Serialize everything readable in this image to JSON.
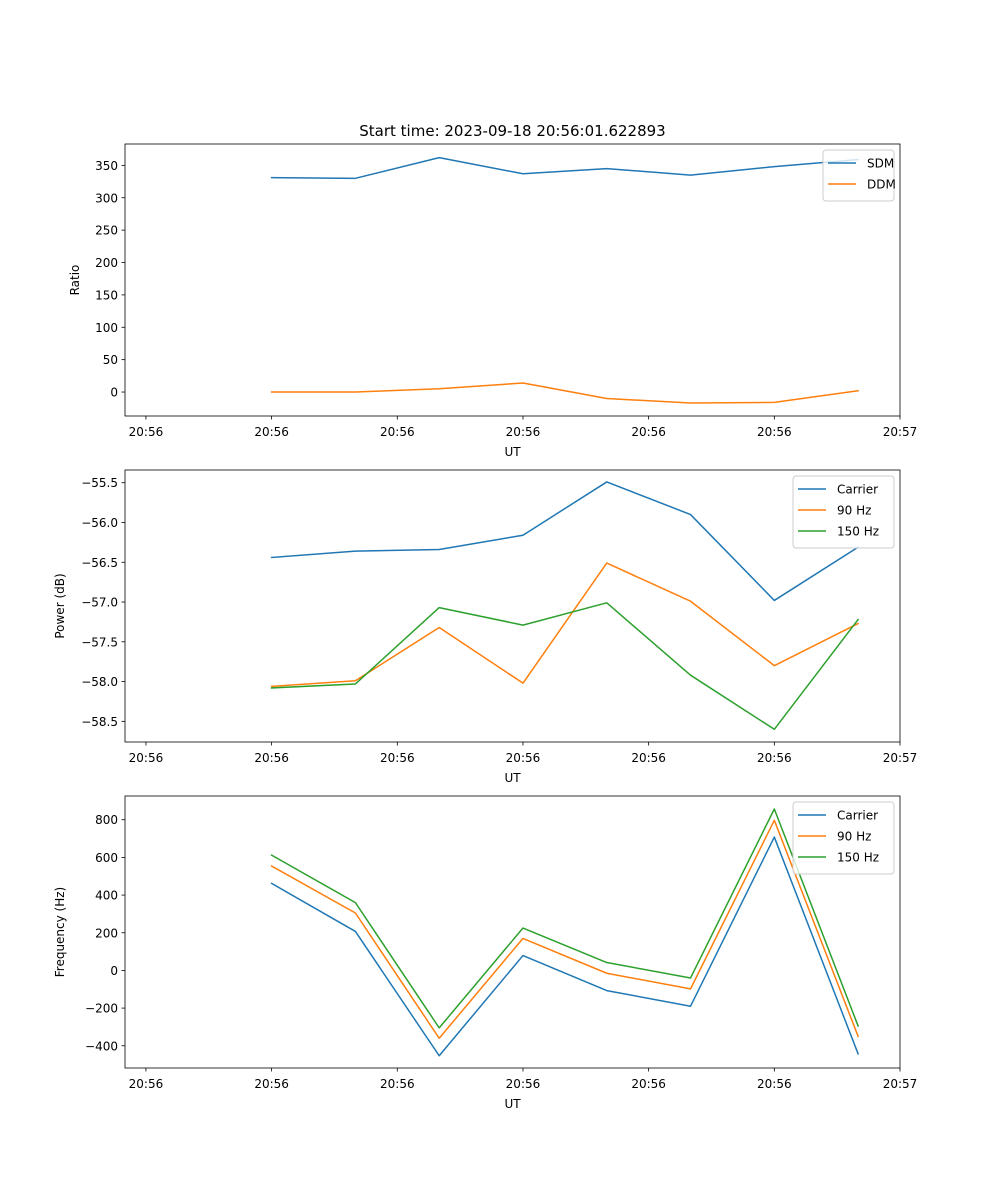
{
  "figure_title": "Start time: 2023-09-18 20:56:01.622893",
  "colors": {
    "c0": "#1f77b4",
    "c1": "#ff7f0e",
    "c2": "#2ca02c"
  },
  "chart_data": [
    {
      "type": "line",
      "title": "Start time: 2023-09-18 20:56:01.622893",
      "xlabel": "UT",
      "ylabel": "Ratio",
      "x": [
        1,
        2,
        3,
        4,
        5,
        6,
        7,
        8
      ],
      "xlim": [
        -0.75,
        8.5
      ],
      "xticks": [
        -0.5,
        1,
        2.5,
        4,
        5.5,
        7,
        8.5
      ],
      "xtick_labels": [
        "20:56",
        "20:56",
        "20:56",
        "20:56",
        "20:56",
        "20:56",
        "20:57"
      ],
      "ylim": [
        -37,
        383
      ],
      "yticks": [
        0,
        50,
        100,
        150,
        200,
        250,
        300,
        350
      ],
      "ytick_labels": [
        "0",
        "50",
        "100",
        "150",
        "200",
        "250",
        "300",
        "350"
      ],
      "legend_position": "upper right",
      "series": [
        {
          "name": "SDM",
          "color": "#1f77b4",
          "values": [
            331,
            330,
            362,
            337,
            345,
            335,
            348,
            359
          ]
        },
        {
          "name": "DDM",
          "color": "#ff7f0e",
          "values": [
            0,
            0,
            5,
            14,
            -10,
            -17,
            -16,
            2
          ]
        }
      ]
    },
    {
      "type": "line",
      "title": "",
      "xlabel": "UT",
      "ylabel": "Power (dB)",
      "x": [
        1,
        2,
        3,
        4,
        5,
        6,
        7,
        8
      ],
      "xlim": [
        -0.75,
        8.5
      ],
      "xticks": [
        -0.5,
        1,
        2.5,
        4,
        5.5,
        7,
        8.5
      ],
      "xtick_labels": [
        "20:56",
        "20:56",
        "20:56",
        "20:56",
        "20:56",
        "20:56",
        "20:57"
      ],
      "ylim": [
        -58.76,
        -55.34
      ],
      "yticks": [
        -58.5,
        -58.0,
        -57.5,
        -57.0,
        -56.5,
        -56.0,
        -55.5
      ],
      "ytick_labels": [
        "−58.5",
        "−58.0",
        "−57.5",
        "−57.0",
        "−56.5",
        "−56.0",
        "−55.5"
      ],
      "legend_position": "upper right",
      "series": [
        {
          "name": "Carrier",
          "color": "#1f77b4",
          "values": [
            -56.44,
            -56.36,
            -56.34,
            -56.16,
            -55.49,
            -55.9,
            -56.98,
            -56.31
          ]
        },
        {
          "name": "90 Hz",
          "color": "#ff7f0e",
          "values": [
            -58.06,
            -57.99,
            -57.32,
            -58.02,
            -56.51,
            -56.99,
            -57.8,
            -57.27
          ]
        },
        {
          "name": "150 Hz",
          "color": "#2ca02c",
          "values": [
            -58.08,
            -58.03,
            -57.07,
            -57.29,
            -57.01,
            -57.92,
            -58.6,
            -57.22
          ]
        }
      ]
    },
    {
      "type": "line",
      "title": "",
      "xlabel": "UT",
      "ylabel": "Frequency (Hz)",
      "x": [
        1,
        2,
        3,
        4,
        5,
        6,
        7,
        8
      ],
      "xlim": [
        -0.75,
        8.5
      ],
      "xticks": [
        -0.5,
        1,
        2.5,
        4,
        5.5,
        7,
        8.5
      ],
      "xtick_labels": [
        "20:56",
        "20:56",
        "20:56",
        "20:56",
        "20:56",
        "20:56",
        "20:57"
      ],
      "ylim": [
        -518,
        926
      ],
      "yticks": [
        -400,
        -200,
        0,
        200,
        400,
        600,
        800
      ],
      "ytick_labels": [
        "−400",
        "−200",
        "0",
        "200",
        "400",
        "600",
        "800"
      ],
      "legend_position": "upper right",
      "series": [
        {
          "name": "Carrier",
          "color": "#1f77b4",
          "values": [
            462,
            207,
            -453,
            79,
            -107,
            -190,
            708,
            -443
          ]
        },
        {
          "name": "90 Hz",
          "color": "#ff7f0e",
          "values": [
            554,
            305,
            -360,
            170,
            -15,
            -98,
            797,
            -350
          ]
        },
        {
          "name": "150 Hz",
          "color": "#2ca02c",
          "values": [
            612,
            360,
            -305,
            225,
            42,
            -40,
            857,
            -295
          ]
        }
      ]
    }
  ]
}
